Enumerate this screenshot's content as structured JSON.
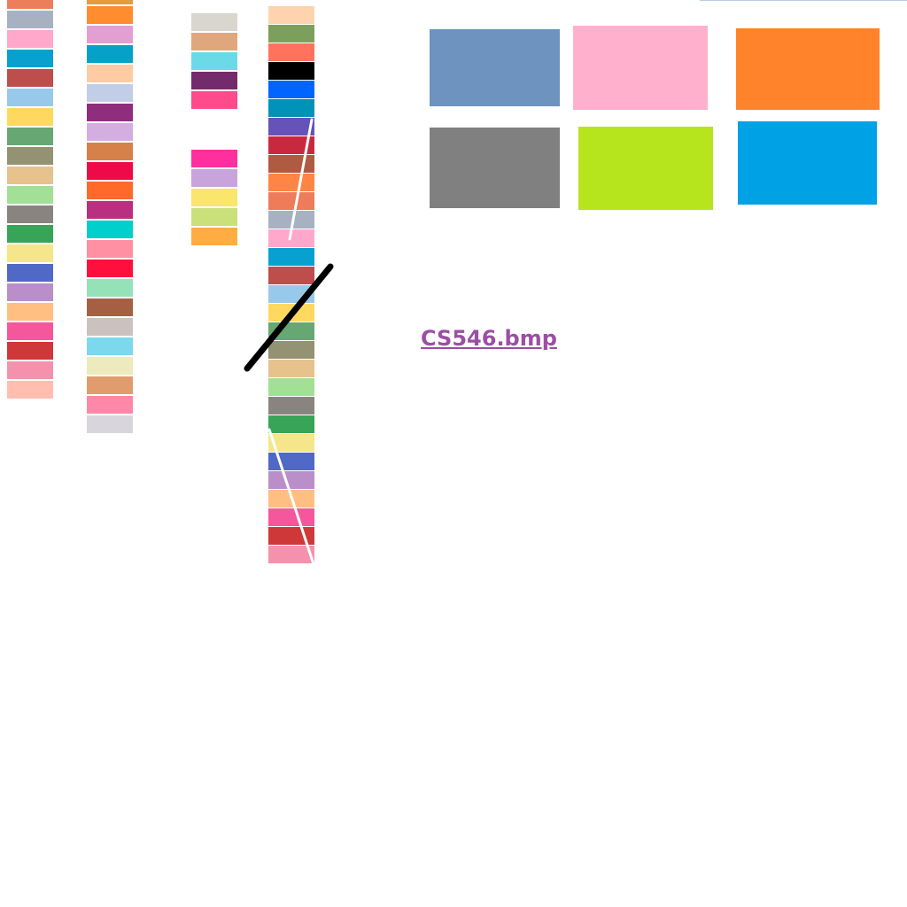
{
  "palette_columns": [
    [
      "#ec7e5c",
      "#a7b1c2",
      "#ffa8cb",
      "#08a0cf",
      "#bd4e4b",
      "#98c9ea",
      "#ffd95f",
      "#66a773",
      "#939272",
      "#e6c28d",
      "#a1e095",
      "#8a8481",
      "#37a457",
      "#f5e68b",
      "#5068c6",
      "#ba8fc9",
      "#ffbf82",
      "#f4579c",
      "#ce3838",
      "#f492ad",
      "#ffbeb0"
    ],
    [
      "#e89a3c",
      "#ff8c2e",
      "#e49fd2",
      "#06a0c8",
      "#ffcba4",
      "#c2cde6",
      "#8f2e7c",
      "#d4aee0",
      "#d6804a",
      "#ee0a49",
      "#ff6a2a",
      "#b8307f",
      "#00cfcb",
      "#ff8fa3",
      "#ff0f3d",
      "#95e2b9",
      "#a56044",
      "#cbc2c0",
      "#7cd8ec",
      "#edeabd",
      "#e09c6c",
      "#ff87a7",
      "#d8d6dc"
    ],
    [
      "#d9d5cf",
      "#e0a77d",
      "#6bd9e6",
      "#742b6b",
      "#ff4a8c",
      "",
      "",
      "#ff2f9d",
      "#c8a3dc",
      "#fae66c",
      "#c9e07b",
      "#ffad42"
    ],
    [
      "#fed3ae",
      "#7d9f5c",
      "#ff735e",
      "#000000",
      "#0065ff",
      "#0092b7",
      "#6553b9",
      "#c9293f",
      "#b05a42",
      "#ff8546",
      "#ee7b5a",
      "#a7b1c2",
      "#ffa8cb",
      "#08a0cf",
      "#bd4e4b",
      "#98c9ea",
      "#ffd95f",
      "#66a773",
      "#939272",
      "#e6c28d",
      "#a1e095",
      "#8a8481",
      "#37a457",
      "#f5e68b",
      "#5068c6",
      "#ba8fc9",
      "#ffbf82",
      "#f4579c",
      "#ce3838",
      "#f492ad"
    ]
  ],
  "big_swatches": [
    "#6d93be",
    "#ffb0cc",
    "#ff832b",
    "#808080",
    "#b6e51e",
    "#00a2e6"
  ],
  "file_link": {
    "label": "CS546.bmp",
    "color": "#9b4fa3"
  }
}
